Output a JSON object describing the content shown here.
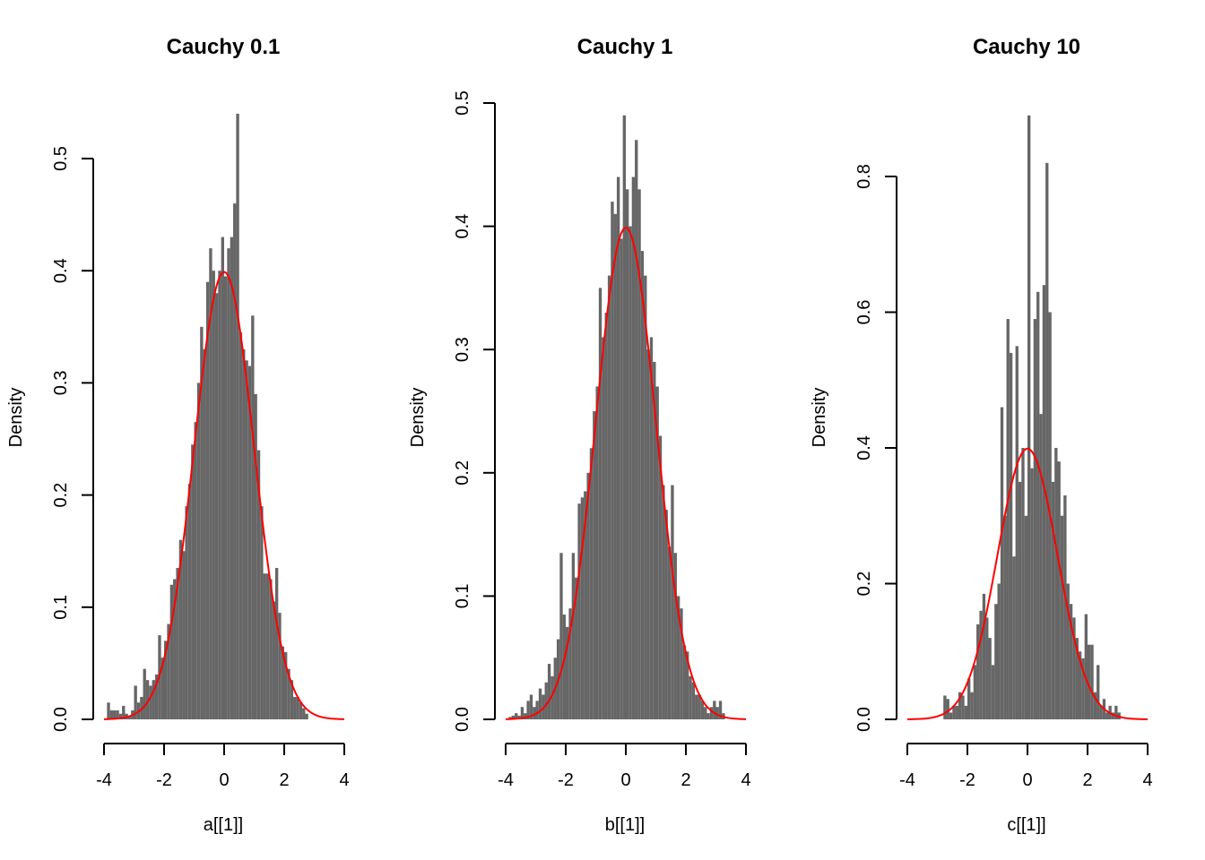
{
  "chart_data": [
    {
      "type": "bar",
      "title": "Cauchy 0.1",
      "xlabel": "a[[1]]",
      "ylabel": "Density",
      "xlim": [
        -4,
        4
      ],
      "xticks": [
        -4,
        -2,
        0,
        2,
        4
      ],
      "yticks": [
        0.0,
        0.1,
        0.2,
        0.3,
        0.4,
        0.5
      ],
      "ytick_labels": [
        "0.0",
        "0.1",
        "0.2",
        "0.3",
        "0.4",
        "0.5"
      ],
      "ylim": [
        0,
        0.55
      ],
      "bin_width": 0.1,
      "bins": [
        {
          "x": -3.85,
          "y": 0.015
        },
        {
          "x": -3.75,
          "y": 0.008
        },
        {
          "x": -3.65,
          "y": 0.008
        },
        {
          "x": -3.55,
          "y": 0.008
        },
        {
          "x": -3.45,
          "y": 0.005
        },
        {
          "x": -3.35,
          "y": 0.012
        },
        {
          "x": -3.25,
          "y": 0.005
        },
        {
          "x": -3.15,
          "y": 0.003
        },
        {
          "x": -3.05,
          "y": 0.008
        },
        {
          "x": -2.95,
          "y": 0.03
        },
        {
          "x": -2.85,
          "y": 0.015
        },
        {
          "x": -2.75,
          "y": 0.02
        },
        {
          "x": -2.65,
          "y": 0.045
        },
        {
          "x": -2.55,
          "y": 0.035
        },
        {
          "x": -2.45,
          "y": 0.03
        },
        {
          "x": -2.35,
          "y": 0.035
        },
        {
          "x": -2.25,
          "y": 0.04
        },
        {
          "x": -2.15,
          "y": 0.075
        },
        {
          "x": -2.05,
          "y": 0.055
        },
        {
          "x": -1.95,
          "y": 0.07
        },
        {
          "x": -1.85,
          "y": 0.085
        },
        {
          "x": -1.75,
          "y": 0.12
        },
        {
          "x": -1.65,
          "y": 0.125
        },
        {
          "x": -1.55,
          "y": 0.135
        },
        {
          "x": -1.45,
          "y": 0.16
        },
        {
          "x": -1.35,
          "y": 0.15
        },
        {
          "x": -1.25,
          "y": 0.19
        },
        {
          "x": -1.15,
          "y": 0.21
        },
        {
          "x": -1.05,
          "y": 0.245
        },
        {
          "x": -0.95,
          "y": 0.265
        },
        {
          "x": -0.85,
          "y": 0.3
        },
        {
          "x": -0.75,
          "y": 0.35
        },
        {
          "x": -0.65,
          "y": 0.33
        },
        {
          "x": -0.55,
          "y": 0.39
        },
        {
          "x": -0.45,
          "y": 0.42
        },
        {
          "x": -0.35,
          "y": 0.4
        },
        {
          "x": -0.25,
          "y": 0.38
        },
        {
          "x": -0.15,
          "y": 0.4
        },
        {
          "x": -0.05,
          "y": 0.43
        },
        {
          "x": 0.05,
          "y": 0.395
        },
        {
          "x": 0.15,
          "y": 0.42
        },
        {
          "x": 0.25,
          "y": 0.43
        },
        {
          "x": 0.35,
          "y": 0.46
        },
        {
          "x": 0.45,
          "y": 0.54
        },
        {
          "x": 0.55,
          "y": 0.345
        },
        {
          "x": 0.65,
          "y": 0.33
        },
        {
          "x": 0.75,
          "y": 0.32
        },
        {
          "x": 0.85,
          "y": 0.315
        },
        {
          "x": 0.95,
          "y": 0.36
        },
        {
          "x": 1.05,
          "y": 0.29
        },
        {
          "x": 1.15,
          "y": 0.24
        },
        {
          "x": 1.25,
          "y": 0.19
        },
        {
          "x": 1.35,
          "y": 0.13
        },
        {
          "x": 1.45,
          "y": 0.13
        },
        {
          "x": 1.55,
          "y": 0.125
        },
        {
          "x": 1.65,
          "y": 0.105
        },
        {
          "x": 1.75,
          "y": 0.135
        },
        {
          "x": 1.85,
          "y": 0.095
        },
        {
          "x": 1.95,
          "y": 0.065
        },
        {
          "x": 2.05,
          "y": 0.06
        },
        {
          "x": 2.15,
          "y": 0.045
        },
        {
          "x": 2.25,
          "y": 0.035
        },
        {
          "x": 2.35,
          "y": 0.02
        },
        {
          "x": 2.45,
          "y": 0.02
        },
        {
          "x": 2.55,
          "y": 0.015
        },
        {
          "x": 2.65,
          "y": 0.01
        },
        {
          "x": 2.75,
          "y": 0.005
        }
      ],
      "series": [
        {
          "name": "",
          "kind": "curve",
          "color": "#ff0000",
          "formula": "normal_density",
          "x_range": [
            -4,
            4
          ]
        }
      ],
      "bar_color": "#666666"
    },
    {
      "type": "bar",
      "title": "Cauchy 1",
      "xlabel": "b[[1]]",
      "ylabel": "Density",
      "xlim": [
        -4,
        4
      ],
      "xticks": [
        -4,
        -2,
        0,
        2,
        4
      ],
      "yticks": [
        0.0,
        0.1,
        0.2,
        0.3,
        0.4,
        0.5
      ],
      "ytick_labels": [
        "0.0",
        "0.1",
        "0.2",
        "0.3",
        "0.4",
        "0.5"
      ],
      "ylim": [
        0,
        0.5
      ],
      "bin_width": 0.1,
      "bins": [
        {
          "x": -3.85,
          "y": 0.002
        },
        {
          "x": -3.75,
          "y": 0.003
        },
        {
          "x": -3.65,
          "y": 0.005
        },
        {
          "x": -3.55,
          "y": 0.003
        },
        {
          "x": -3.45,
          "y": 0.01
        },
        {
          "x": -3.35,
          "y": 0.005
        },
        {
          "x": -3.25,
          "y": 0.015
        },
        {
          "x": -3.15,
          "y": 0.02
        },
        {
          "x": -3.05,
          "y": 0.01
        },
        {
          "x": -2.95,
          "y": 0.015
        },
        {
          "x": -2.85,
          "y": 0.025
        },
        {
          "x": -2.75,
          "y": 0.02
        },
        {
          "x": -2.65,
          "y": 0.03
        },
        {
          "x": -2.55,
          "y": 0.045
        },
        {
          "x": -2.45,
          "y": 0.035
        },
        {
          "x": -2.35,
          "y": 0.05
        },
        {
          "x": -2.25,
          "y": 0.065
        },
        {
          "x": -2.15,
          "y": 0.135
        },
        {
          "x": -2.05,
          "y": 0.085
        },
        {
          "x": -1.95,
          "y": 0.075
        },
        {
          "x": -1.85,
          "y": 0.09
        },
        {
          "x": -1.75,
          "y": 0.135
        },
        {
          "x": -1.65,
          "y": 0.115
        },
        {
          "x": -1.55,
          "y": 0.175
        },
        {
          "x": -1.45,
          "y": 0.18
        },
        {
          "x": -1.35,
          "y": 0.185
        },
        {
          "x": -1.25,
          "y": 0.2
        },
        {
          "x": -1.15,
          "y": 0.22
        },
        {
          "x": -1.05,
          "y": 0.25
        },
        {
          "x": -0.95,
          "y": 0.27
        },
        {
          "x": -0.85,
          "y": 0.35
        },
        {
          "x": -0.75,
          "y": 0.31
        },
        {
          "x": -0.65,
          "y": 0.33
        },
        {
          "x": -0.55,
          "y": 0.36
        },
        {
          "x": -0.45,
          "y": 0.42
        },
        {
          "x": -0.35,
          "y": 0.41
        },
        {
          "x": -0.25,
          "y": 0.44
        },
        {
          "x": -0.15,
          "y": 0.39
        },
        {
          "x": -0.05,
          "y": 0.49
        },
        {
          "x": 0.05,
          "y": 0.43
        },
        {
          "x": 0.15,
          "y": 0.4
        },
        {
          "x": 0.25,
          "y": 0.44
        },
        {
          "x": 0.35,
          "y": 0.47
        },
        {
          "x": 0.45,
          "y": 0.43
        },
        {
          "x": 0.55,
          "y": 0.38
        },
        {
          "x": 0.65,
          "y": 0.36
        },
        {
          "x": 0.75,
          "y": 0.3
        },
        {
          "x": 0.85,
          "y": 0.31
        },
        {
          "x": 0.95,
          "y": 0.29
        },
        {
          "x": 1.05,
          "y": 0.27
        },
        {
          "x": 1.15,
          "y": 0.23
        },
        {
          "x": 1.25,
          "y": 0.19
        },
        {
          "x": 1.35,
          "y": 0.17
        },
        {
          "x": 1.45,
          "y": 0.14
        },
        {
          "x": 1.55,
          "y": 0.19
        },
        {
          "x": 1.65,
          "y": 0.135
        },
        {
          "x": 1.75,
          "y": 0.1
        },
        {
          "x": 1.85,
          "y": 0.09
        },
        {
          "x": 1.95,
          "y": 0.06
        },
        {
          "x": 2.05,
          "y": 0.055
        },
        {
          "x": 2.15,
          "y": 0.035
        },
        {
          "x": 2.25,
          "y": 0.03
        },
        {
          "x": 2.35,
          "y": 0.02
        },
        {
          "x": 2.45,
          "y": 0.02
        },
        {
          "x": 2.55,
          "y": 0.015
        },
        {
          "x": 2.65,
          "y": 0.01
        },
        {
          "x": 2.75,
          "y": 0.005
        },
        {
          "x": 2.85,
          "y": 0.01
        },
        {
          "x": 2.95,
          "y": 0.015
        },
        {
          "x": 3.05,
          "y": 0.01
        },
        {
          "x": 3.15,
          "y": 0.015
        },
        {
          "x": 3.25,
          "y": 0.005
        }
      ],
      "series": [
        {
          "name": "",
          "kind": "curve",
          "color": "#ff0000",
          "formula": "normal_density",
          "x_range": [
            -4,
            4
          ]
        }
      ],
      "bar_color": "#666666"
    },
    {
      "type": "bar",
      "title": "Cauchy 10",
      "xlabel": "c[[1]]",
      "ylabel": "Density",
      "xlim": [
        -4,
        4
      ],
      "xticks": [
        -4,
        -2,
        0,
        2,
        4
      ],
      "yticks": [
        0.0,
        0.2,
        0.4,
        0.6,
        0.8
      ],
      "ytick_labels": [
        "0.0",
        "0.2",
        "0.4",
        "0.6",
        "0.8"
      ],
      "ylim": [
        0,
        0.9
      ],
      "bin_width": 0.1,
      "bins": [
        {
          "x": -2.75,
          "y": 0.035
        },
        {
          "x": -2.65,
          "y": 0.03
        },
        {
          "x": -2.55,
          "y": 0.01
        },
        {
          "x": -2.45,
          "y": 0.02
        },
        {
          "x": -2.35,
          "y": 0.02
        },
        {
          "x": -2.25,
          "y": 0.04
        },
        {
          "x": -2.15,
          "y": 0.035
        },
        {
          "x": -2.05,
          "y": 0.02
        },
        {
          "x": -1.95,
          "y": 0.06
        },
        {
          "x": -1.85,
          "y": 0.04
        },
        {
          "x": -1.75,
          "y": 0.08
        },
        {
          "x": -1.65,
          "y": 0.14
        },
        {
          "x": -1.55,
          "y": 0.16
        },
        {
          "x": -1.45,
          "y": 0.185
        },
        {
          "x": -1.35,
          "y": 0.15
        },
        {
          "x": -1.25,
          "y": 0.12
        },
        {
          "x": -1.15,
          "y": 0.08
        },
        {
          "x": -1.05,
          "y": 0.17
        },
        {
          "x": -0.95,
          "y": 0.2
        },
        {
          "x": -0.85,
          "y": 0.46
        },
        {
          "x": -0.75,
          "y": 0.3
        },
        {
          "x": -0.65,
          "y": 0.59
        },
        {
          "x": -0.55,
          "y": 0.54
        },
        {
          "x": -0.45,
          "y": 0.24
        },
        {
          "x": -0.35,
          "y": 0.55
        },
        {
          "x": -0.25,
          "y": 0.35
        },
        {
          "x": -0.15,
          "y": 0.4
        },
        {
          "x": -0.05,
          "y": 0.3
        },
        {
          "x": 0.05,
          "y": 0.89
        },
        {
          "x": 0.15,
          "y": 0.37
        },
        {
          "x": 0.25,
          "y": 0.59
        },
        {
          "x": 0.35,
          "y": 0.63
        },
        {
          "x": 0.45,
          "y": 0.45
        },
        {
          "x": 0.55,
          "y": 0.64
        },
        {
          "x": 0.65,
          "y": 0.82
        },
        {
          "x": 0.75,
          "y": 0.6
        },
        {
          "x": 0.85,
          "y": 0.35
        },
        {
          "x": 0.95,
          "y": 0.4
        },
        {
          "x": 1.05,
          "y": 0.38
        },
        {
          "x": 1.15,
          "y": 0.3
        },
        {
          "x": 1.25,
          "y": 0.33
        },
        {
          "x": 1.35,
          "y": 0.2
        },
        {
          "x": 1.45,
          "y": 0.17
        },
        {
          "x": 1.55,
          "y": 0.15
        },
        {
          "x": 1.65,
          "y": 0.12
        },
        {
          "x": 1.75,
          "y": 0.1
        },
        {
          "x": 1.85,
          "y": 0.09
        },
        {
          "x": 1.95,
          "y": 0.155
        },
        {
          "x": 2.05,
          "y": 0.11
        },
        {
          "x": 2.15,
          "y": 0.11
        },
        {
          "x": 2.25,
          "y": 0.04
        },
        {
          "x": 2.35,
          "y": 0.08
        },
        {
          "x": 2.45,
          "y": 0.02
        },
        {
          "x": 2.55,
          "y": 0.03
        },
        {
          "x": 2.65,
          "y": 0.01
        },
        {
          "x": 2.75,
          "y": 0.02
        },
        {
          "x": 2.85,
          "y": 0.01
        },
        {
          "x": 2.95,
          "y": 0.02
        },
        {
          "x": 3.05,
          "y": 0.01
        }
      ],
      "series": [
        {
          "name": "",
          "kind": "curve",
          "color": "#ff0000",
          "formula": "normal_density",
          "x_range": [
            -4,
            4
          ]
        }
      ],
      "bar_color": "#666666"
    }
  ]
}
